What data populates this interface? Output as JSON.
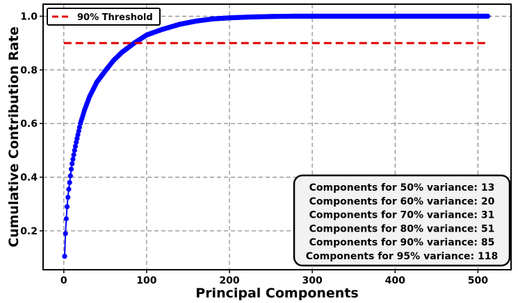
{
  "chart_data": {
    "type": "line",
    "xlabel": "Principal Components",
    "ylabel": "Cumulative Contribution Rate",
    "xlim": [
      -25,
      540
    ],
    "ylim": [
      0.055,
      1.045
    ],
    "x_ticks": [
      0,
      100,
      200,
      300,
      400,
      500
    ],
    "y_ticks": [
      0.2,
      0.4,
      0.6,
      0.8,
      1.0
    ],
    "x_tick_labels": [
      "0",
      "100",
      "200",
      "300",
      "400",
      "500"
    ],
    "y_tick_labels": [
      "0.2",
      "0.4",
      "0.6",
      "0.8",
      "1.0"
    ],
    "grid": true,
    "legend_position": "top-left",
    "series": [
      {
        "kind": "cumulative_variance",
        "color": "#0000ff",
        "marker": "circle",
        "n_points": 512,
        "points": [
          [
            1,
            0.105
          ],
          [
            2,
            0.19
          ],
          [
            3,
            0.245
          ],
          [
            4,
            0.29
          ],
          [
            5,
            0.325
          ],
          [
            6,
            0.355
          ],
          [
            7,
            0.38
          ],
          [
            8,
            0.405
          ],
          [
            9,
            0.43
          ],
          [
            10,
            0.45
          ],
          [
            13,
            0.5
          ],
          [
            15,
            0.53
          ],
          [
            20,
            0.6
          ],
          [
            25,
            0.65
          ],
          [
            31,
            0.7
          ],
          [
            40,
            0.755
          ],
          [
            51,
            0.8
          ],
          [
            60,
            0.835
          ],
          [
            70,
            0.865
          ],
          [
            85,
            0.9
          ],
          [
            100,
            0.93
          ],
          [
            118,
            0.95
          ],
          [
            140,
            0.97
          ],
          [
            160,
            0.982
          ],
          [
            180,
            0.99
          ],
          [
            200,
            0.994
          ],
          [
            225,
            0.997
          ],
          [
            250,
            0.999
          ],
          [
            275,
            1.0
          ],
          [
            300,
            1.0
          ],
          [
            400,
            1.0
          ],
          [
            512,
            1.0
          ]
        ]
      },
      {
        "name": "90% Threshold",
        "kind": "threshold",
        "color": "#e00000",
        "style": "dashed",
        "y": 0.9,
        "x_range": [
          0,
          512
        ]
      }
    ],
    "annotation_lines": [
      "Components for 50% variance:  13",
      "Components for 60% variance:  20",
      "Components for 70% variance:  31",
      "Components for 80% variance:  51",
      "Components for 90% variance:  85",
      "Components for 95% variance: 118"
    ]
  }
}
